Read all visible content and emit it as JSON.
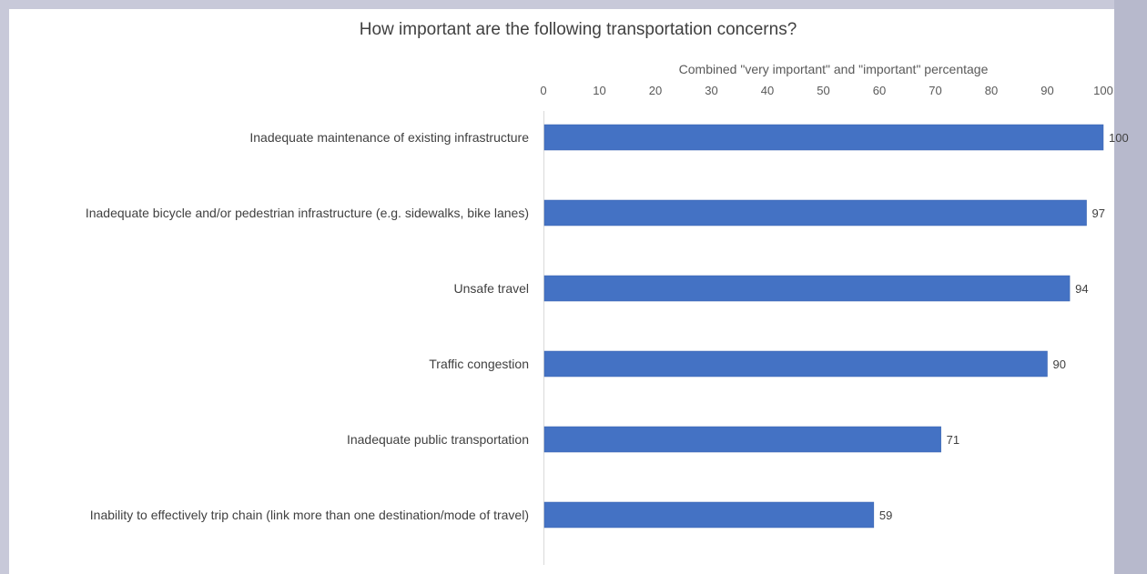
{
  "chart_data": {
    "type": "bar",
    "orientation": "horizontal",
    "title": "How important are the following transportation concerns?",
    "xlabel": "Combined \"very important\" and \"important\" percentage",
    "ylabel": "",
    "xlim": [
      0,
      100
    ],
    "xticks": [
      0,
      10,
      20,
      30,
      40,
      50,
      60,
      70,
      80,
      90,
      100
    ],
    "categories": [
      "Inadequate maintenance of existing infrastructure",
      "Inadequate bicycle and/or pedestrian infrastructure (e.g. sidewalks, bike lanes)",
      "Unsafe travel",
      "Traffic congestion",
      "Inadequate public transportation",
      "Inability to effectively trip chain (link more than one destination/mode of travel)"
    ],
    "values": [
      100,
      97,
      94,
      90,
      71,
      59
    ],
    "data_labels": [
      "100",
      "97",
      "94",
      "90",
      "71",
      "59"
    ],
    "axis_position": "top",
    "grid": false,
    "legend": "none",
    "bar_color": "#4472c4"
  }
}
